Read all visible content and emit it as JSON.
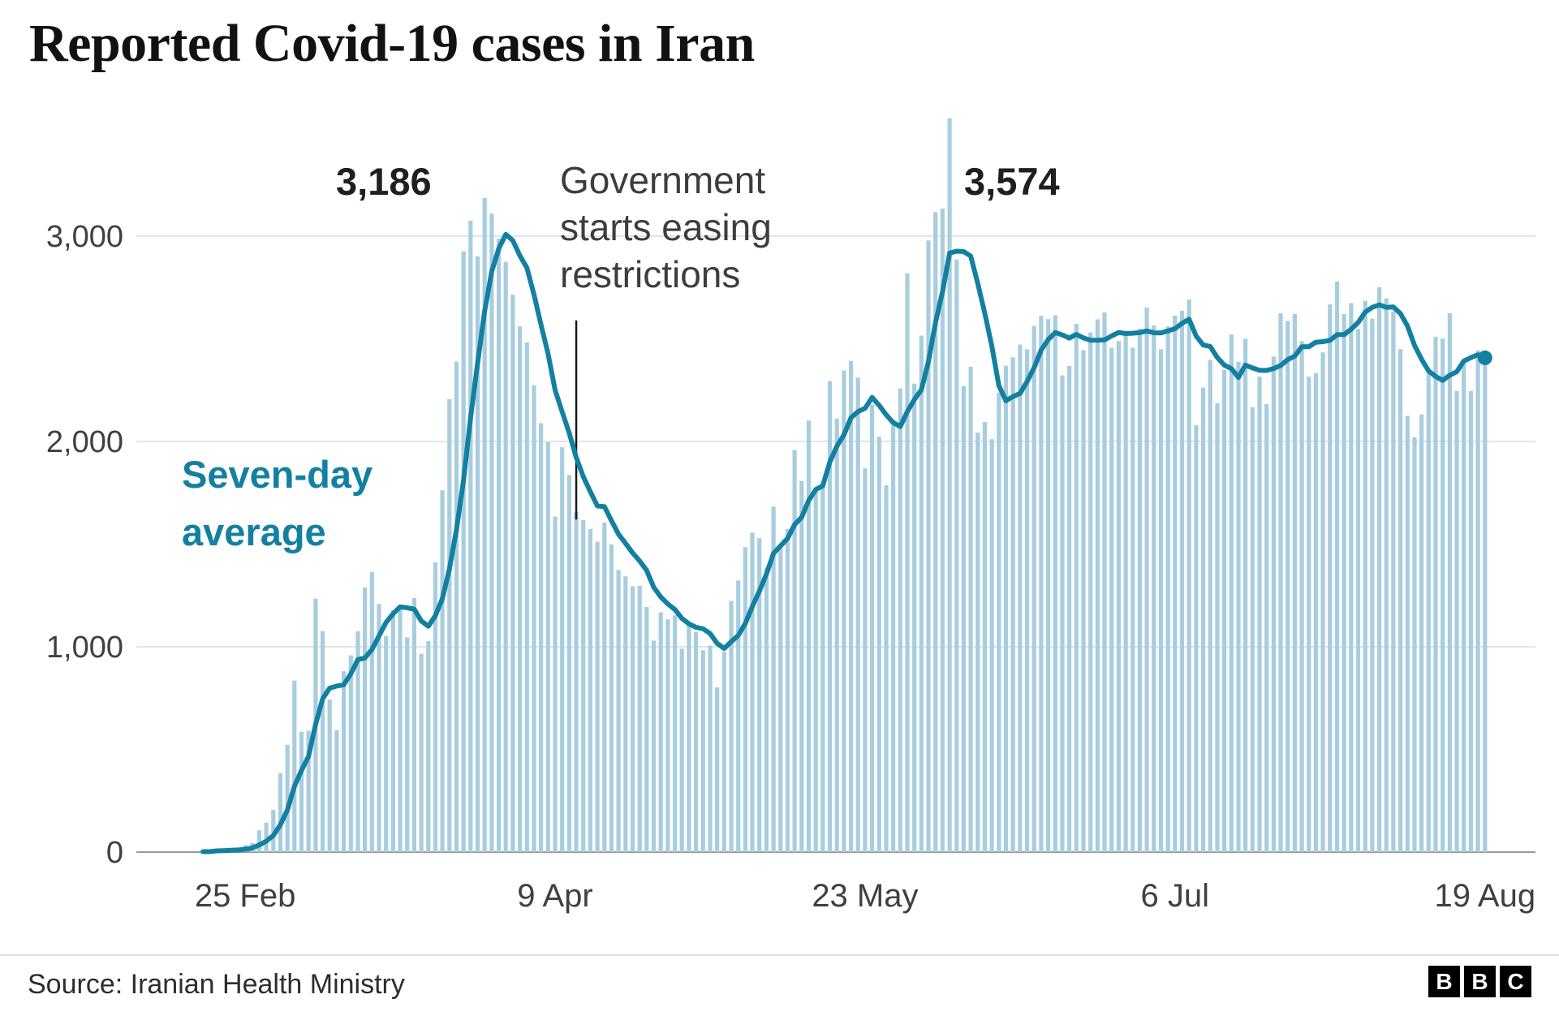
{
  "page": {
    "title": "Reported Covid-19 cases in Iran"
  },
  "chart_data": {
    "type": "bar",
    "overlay": "line",
    "title": "Reported Covid-19 cases in Iran",
    "x_start_date": "19 Feb 2020",
    "x_ticks": [
      {
        "label": "25 Feb",
        "index": 6
      },
      {
        "label": "9 Apr",
        "index": 50
      },
      {
        "label": "23 May",
        "index": 94
      },
      {
        "label": "6 Jul",
        "index": 138
      },
      {
        "label": "19 Aug",
        "index": 182
      }
    ],
    "y_ticks": [
      {
        "value": 0,
        "label": "0"
      },
      {
        "value": 1000,
        "label": "1,000"
      },
      {
        "value": 2000,
        "label": "2,000"
      },
      {
        "value": 3000,
        "label": "3,000"
      }
    ],
    "ylim": [
      0,
      3600
    ],
    "grid": true,
    "values": [
      2,
      3,
      13,
      10,
      15,
      18,
      34,
      44,
      106,
      143,
      205,
      385,
      523,
      835,
      586,
      591,
      1234,
      1076,
      743,
      595,
      881,
      958,
      1075,
      1289,
      1365,
      1209,
      1053,
      1178,
      1192,
      1046,
      1237,
      966,
      1028,
      1411,
      1762,
      2206,
      2389,
      2926,
      3076,
      2901,
      3186,
      3110,
      2988,
      2875,
      2715,
      2560,
      2483,
      2274,
      2089,
      1997,
      1634,
      1972,
      1837,
      1657,
      1617,
      1574,
      1512,
      1606,
      1499,
      1374,
      1343,
      1294,
      1297,
      1194,
      1030,
      1168,
      1134,
      1153,
      991,
      1112,
      1073,
      983,
      1006,
      802,
      976,
      1223,
      1323,
      1485,
      1556,
      1529,
      1383,
      1683,
      1481,
      1574,
      1958,
      1808,
      2102,
      1757,
      1806,
      2294,
      2111,
      2346,
      2392,
      2311,
      1869,
      2180,
      2023,
      1787,
      2080,
      2258,
      2819,
      2282,
      2516,
      2979,
      3117,
      3134,
      3574,
      2886,
      2269,
      2364,
      2043,
      2095,
      2011,
      2238,
      2369,
      2410,
      2472,
      2449,
      2563,
      2612,
      2596,
      2615,
      2322,
      2368,
      2573,
      2445,
      2531,
      2595,
      2628,
      2456,
      2489,
      2536,
      2457,
      2549,
      2652,
      2566,
      2449,
      2560,
      2613,
      2637,
      2691,
      2079,
      2262,
      2397,
      2186,
      2349,
      2521,
      2388,
      2500,
      2166,
      2316,
      2182,
      2414,
      2625,
      2586,
      2621,
      2489,
      2316,
      2333,
      2434,
      2668,
      2779,
      2621,
      2674,
      2548,
      2685,
      2598,
      2751,
      2697,
      2634,
      2450,
      2125,
      2020,
      2132,
      2345,
      2510,
      2501,
      2625,
      2245,
      2385,
      2247,
      2444,
      2406
    ],
    "line_series": {
      "name": "Seven-day average",
      "derived": "trailing 7-day mean of values",
      "end_value": 2408
    },
    "series_label": "Seven-day average",
    "series_label_lines": [
      "Seven-day",
      "average"
    ],
    "annotations": {
      "peak1": {
        "label": "3,186",
        "day_index": 40
      },
      "peak2": {
        "label": "3,574",
        "day_index": 106
      },
      "easing": {
        "text": "Government starts easing restrictions",
        "lines": [
          "Government",
          "starts easing",
          "restrictions"
        ],
        "pointer": {
          "day_index": 53,
          "value_top": 2590,
          "value_bottom": 1620
        }
      }
    },
    "colors": {
      "bar": "#a8cdde",
      "line": "#1380A1",
      "grid": "#e4e4e4",
      "baseline": "#9b9b9b",
      "axis_text": "#404040",
      "annotation_pointer": "#1a1a1a"
    }
  },
  "footer": {
    "source": "Source: Iranian Health Ministry",
    "logo_letters": [
      "B",
      "B",
      "C"
    ]
  }
}
